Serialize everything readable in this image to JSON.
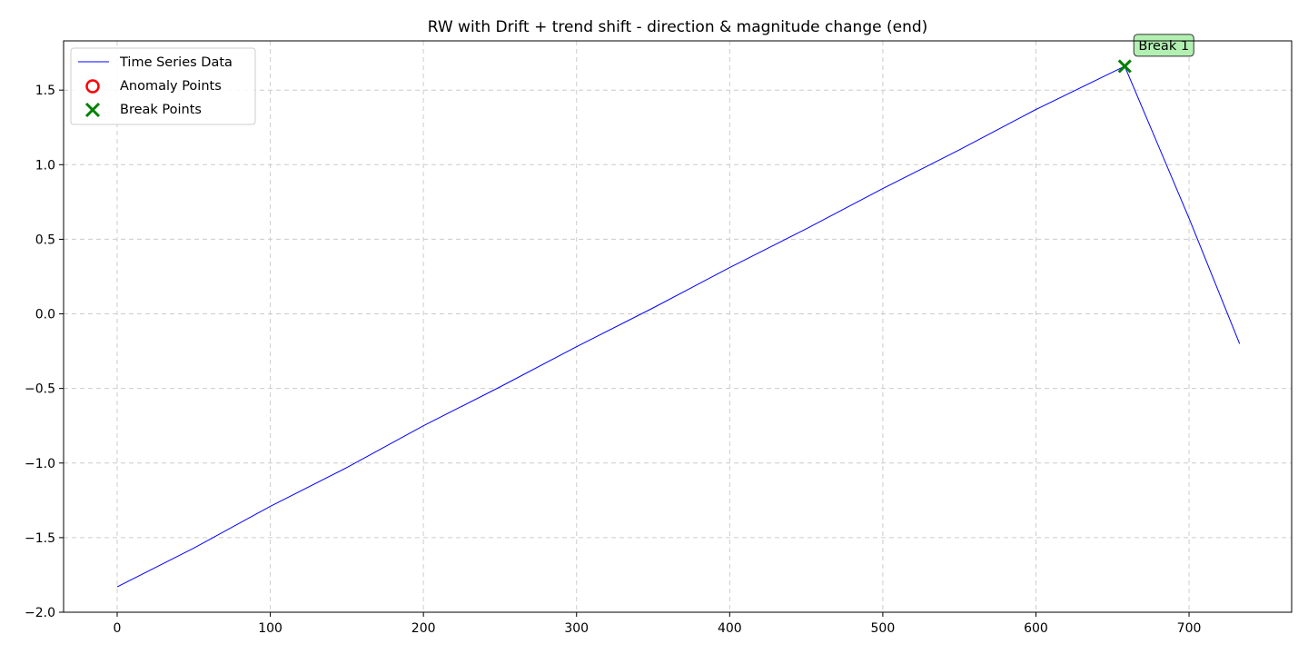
{
  "chart_data": {
    "type": "line",
    "title": "RW with Drift + trend shift - direction & magnitude change (end)",
    "xlabel": "",
    "ylabel": "",
    "xlim": [
      -35,
      767
    ],
    "ylim": [
      -2.0,
      1.83
    ],
    "xticks": [
      0,
      100,
      200,
      300,
      400,
      500,
      600,
      700
    ],
    "yticks": [
      -2.0,
      -1.5,
      -1.0,
      -0.5,
      0.0,
      0.5,
      1.0,
      1.5
    ],
    "xtick_labels": [
      "0",
      "100",
      "200",
      "300",
      "400",
      "500",
      "600",
      "700"
    ],
    "ytick_labels": [
      "−2.0",
      "−1.5",
      "−1.0",
      "−0.5",
      "0.0",
      "0.5",
      "1.0",
      "1.5"
    ],
    "grid": true,
    "legend_position": "top-left",
    "series": [
      {
        "name": "Time Series Data",
        "color": "#0000ff",
        "x": [
          0,
          50,
          100,
          150,
          200,
          250,
          300,
          350,
          400,
          450,
          500,
          550,
          600,
          658,
          700,
          733
        ],
        "y": [
          -1.83,
          -1.57,
          -1.29,
          -1.03,
          -0.75,
          -0.49,
          -0.22,
          0.04,
          0.31,
          0.57,
          0.84,
          1.1,
          1.37,
          1.66,
          0.64,
          -0.2
        ]
      }
    ],
    "anomaly_points": {
      "name": "Anomaly Points",
      "color": "#ff0000",
      "points": []
    },
    "break_points": {
      "name": "Break Points",
      "color": "#008000",
      "points": [
        {
          "x": 658,
          "y": 1.66,
          "label": "Break 1"
        }
      ]
    }
  }
}
